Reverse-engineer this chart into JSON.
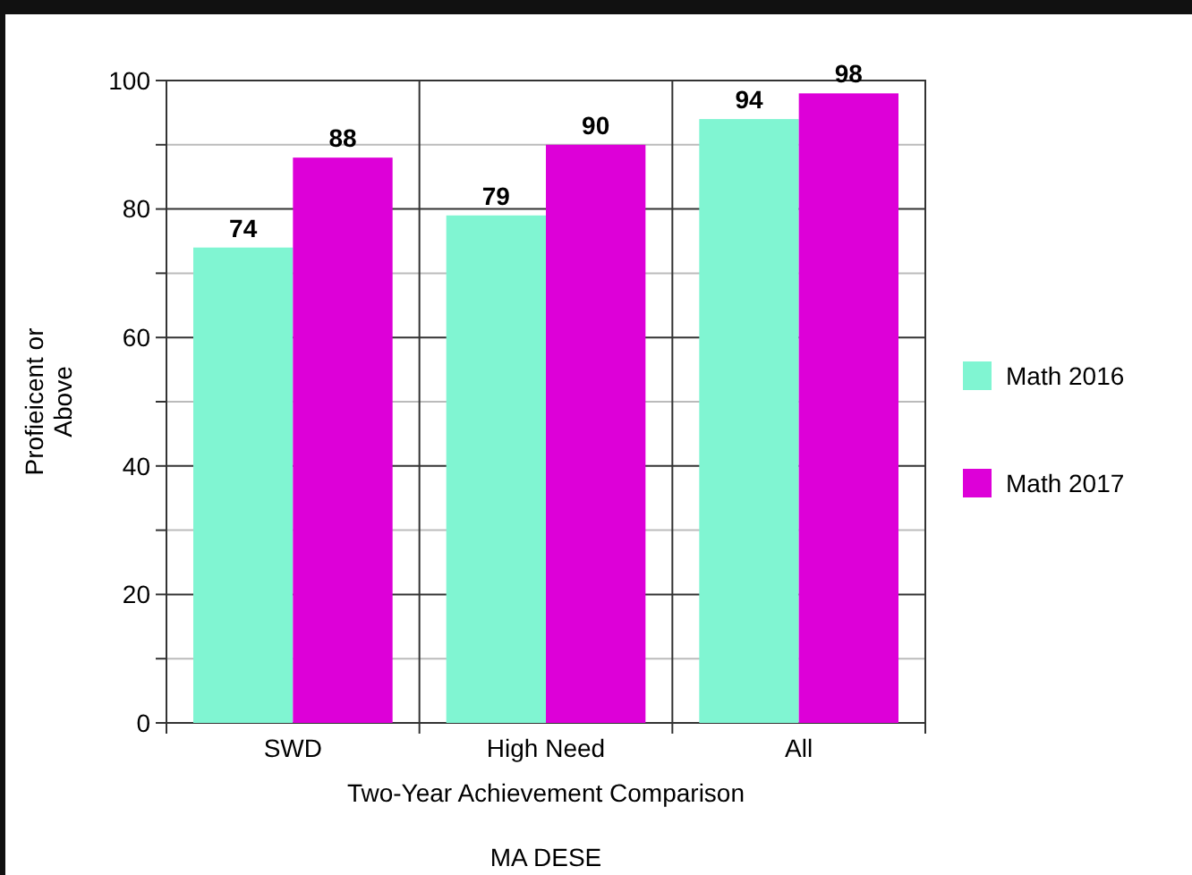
{
  "chart_data": {
    "type": "bar",
    "categories": [
      "SWD",
      "High Need",
      "All"
    ],
    "series": [
      {
        "name": "Math 2016",
        "color": "#80f5d2",
        "values": [
          74,
          79,
          94
        ]
      },
      {
        "name": "Math 2017",
        "color": "#dd00d8",
        "values": [
          88,
          90,
          98
        ]
      }
    ],
    "ylim": [
      0,
      100
    ],
    "yticks": [
      0,
      {
        "value": 10,
        "label": null
      },
      20,
      {
        "value": 30,
        "label": null
      },
      40,
      {
        "value": 50,
        "label": null
      },
      60,
      {
        "value": 70,
        "label": null
      },
      80,
      {
        "value": 90,
        "label": null
      },
      100
    ],
    "ylabel": "Profieicent or Above",
    "xlabel": "Two-Year Achievement Comparison",
    "annotations": [
      "MA DESE"
    ],
    "grid": true,
    "legend": "right",
    "data_labels": true
  }
}
